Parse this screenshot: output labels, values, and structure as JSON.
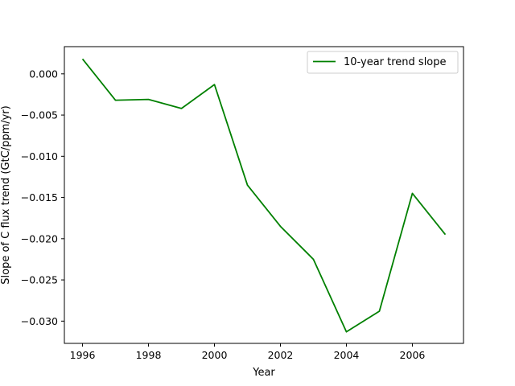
{
  "chart_data": {
    "type": "line",
    "title": "",
    "xlabel": "Year",
    "ylabel": "Slope of C flux trend (GtC/ppm/yr)",
    "xlim": [
      1995.45,
      2007.55
    ],
    "ylim": [
      -0.0327,
      0.0033
    ],
    "xticks": [
      1996,
      1998,
      2000,
      2002,
      2004,
      2006
    ],
    "xtick_labels": [
      "1996",
      "1998",
      "2000",
      "2002",
      "2004",
      "2006"
    ],
    "yticks": [
      0.0,
      -0.005,
      -0.01,
      -0.015,
      -0.02,
      -0.025,
      -0.03
    ],
    "ytick_labels": [
      "0.000",
      "−0.005",
      "−0.010",
      "−0.015",
      "−0.020",
      "−0.025",
      "−0.030"
    ],
    "grid": false,
    "legend_position": "top-right",
    "series": [
      {
        "name": "10-year trend slope",
        "color": "#008000",
        "x": [
          1996,
          1997,
          1998,
          1999,
          2000,
          2001,
          2002,
          2003,
          2004,
          2005,
          2006,
          2007
        ],
        "y": [
          0.0018,
          -0.0032,
          -0.0031,
          -0.0042,
          -0.0013,
          -0.0135,
          -0.0185,
          -0.0225,
          -0.0313,
          -0.0288,
          -0.0145,
          -0.0195
        ]
      }
    ]
  }
}
